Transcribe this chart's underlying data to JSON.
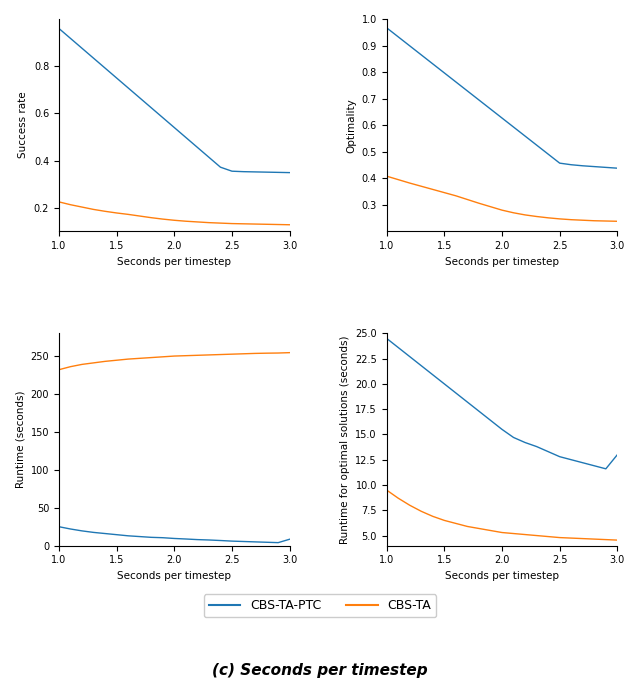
{
  "x_values": [
    1.0,
    1.1,
    1.2,
    1.3,
    1.4,
    1.5,
    1.6,
    1.7,
    1.8,
    1.9,
    2.0,
    2.1,
    2.2,
    2.3,
    2.4,
    2.5,
    2.6,
    2.7,
    2.8,
    2.9,
    3.0
  ],
  "plot1_blue_y": [
    0.96,
    0.918,
    0.876,
    0.834,
    0.792,
    0.75,
    0.708,
    0.666,
    0.624,
    0.582,
    0.54,
    0.498,
    0.456,
    0.414,
    0.372,
    0.355,
    0.353,
    0.352,
    0.351,
    0.35,
    0.349
  ],
  "plot1_orange_y": [
    0.225,
    0.213,
    0.203,
    0.193,
    0.185,
    0.178,
    0.172,
    0.165,
    0.158,
    0.152,
    0.147,
    0.143,
    0.14,
    0.137,
    0.135,
    0.133,
    0.132,
    0.131,
    0.13,
    0.129,
    0.128
  ],
  "plot1_ylabel": "Success rate",
  "plot1_ylim": [
    0.1,
    1.0
  ],
  "plot1_yticks": [
    0.2,
    0.4,
    0.6,
    0.8
  ],
  "plot2_blue_y": [
    0.967,
    0.933,
    0.899,
    0.865,
    0.831,
    0.797,
    0.763,
    0.729,
    0.695,
    0.661,
    0.627,
    0.593,
    0.559,
    0.525,
    0.491,
    0.457,
    0.451,
    0.447,
    0.444,
    0.441,
    0.438
  ],
  "plot2_orange_y": [
    0.408,
    0.395,
    0.382,
    0.37,
    0.358,
    0.346,
    0.334,
    0.32,
    0.306,
    0.293,
    0.28,
    0.27,
    0.262,
    0.256,
    0.251,
    0.247,
    0.244,
    0.242,
    0.24,
    0.239,
    0.238
  ],
  "plot2_ylabel": "Optimality",
  "plot2_ylim": [
    0.2,
    1.0
  ],
  "plot2_yticks": [
    0.3,
    0.4,
    0.5,
    0.6,
    0.7,
    0.8,
    0.9,
    1.0
  ],
  "plot3_blue_y": [
    25.0,
    22.0,
    19.5,
    17.5,
    16.0,
    14.5,
    13.0,
    12.0,
    11.0,
    10.5,
    9.5,
    8.8,
    8.0,
    7.5,
    6.8,
    6.0,
    5.5,
    5.0,
    4.5,
    4.0,
    8.5
  ],
  "plot3_orange_y": [
    232,
    236,
    239,
    241,
    243,
    244.5,
    246,
    247,
    248,
    249,
    250,
    250.5,
    251,
    251.5,
    252,
    252.5,
    253,
    253.5,
    253.8,
    254.0,
    254.5
  ],
  "plot3_ylabel": "Runtime (seconds)",
  "plot3_ylim": [
    0,
    280
  ],
  "plot3_yticks": [
    0,
    50,
    100,
    150,
    200,
    250
  ],
  "plot4_blue_y": [
    24.5,
    23.6,
    22.7,
    21.8,
    20.9,
    20.0,
    19.1,
    18.2,
    17.3,
    16.4,
    15.5,
    14.7,
    14.2,
    13.8,
    13.3,
    12.8,
    12.5,
    12.2,
    11.9,
    11.6,
    13.0
  ],
  "plot4_orange_y": [
    9.5,
    8.7,
    8.0,
    7.4,
    6.9,
    6.5,
    6.2,
    5.9,
    5.7,
    5.5,
    5.3,
    5.2,
    5.1,
    5.0,
    4.9,
    4.8,
    4.75,
    4.7,
    4.65,
    4.6,
    4.55
  ],
  "plot4_ylabel": "Runtime for optimal solutions (seconds)",
  "plot4_ylim": [
    4,
    25
  ],
  "plot4_yticks": [
    5.0,
    7.5,
    10.0,
    12.5,
    15.0,
    17.5,
    20.0,
    22.5,
    25.0
  ],
  "xlabel": "Seconds per timestep",
  "xlim": [
    1.0,
    3.0
  ],
  "xticks": [
    1.0,
    1.5,
    2.0,
    2.5,
    3.0
  ],
  "blue_color": "#1f77b4",
  "orange_color": "#ff7f0e",
  "blue_label": "CBS-TA-PTC",
  "orange_label": "CBS-TA",
  "caption": "(c) Seconds per timestep",
  "caption_fontsize": 11,
  "marker": ".",
  "markersize": 2,
  "linewidth": 1.0
}
